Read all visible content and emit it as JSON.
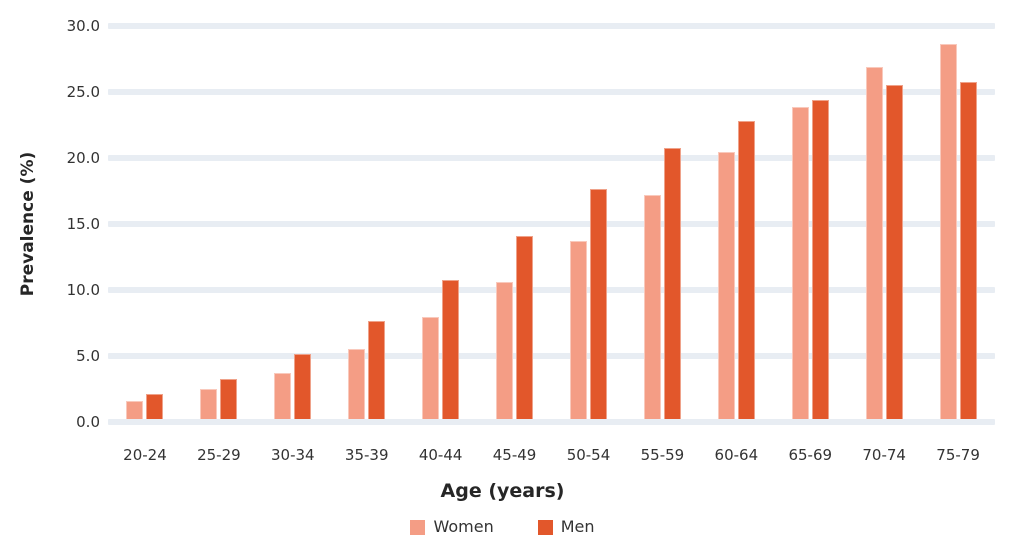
{
  "chart_data": {
    "type": "bar",
    "title": "",
    "xlabel": "Age (years)",
    "ylabel": "Prevalence (%)",
    "categories": [
      "20-24",
      "25-29",
      "30-34",
      "35-39",
      "40-44",
      "45-49",
      "50-54",
      "55-59",
      "60-64",
      "65-69",
      "70-74",
      "75-79"
    ],
    "series": [
      {
        "name": "Women",
        "color": "#F49D85",
        "values": [
          1.4,
          2.3,
          3.5,
          5.3,
          7.7,
          10.4,
          13.5,
          17.0,
          20.2,
          23.6,
          26.7,
          28.4
        ]
      },
      {
        "name": "Men",
        "color": "#E2572B",
        "values": [
          1.9,
          3.0,
          4.9,
          7.4,
          10.5,
          13.9,
          17.4,
          20.5,
          22.6,
          24.2,
          25.3,
          25.5
        ]
      }
    ],
    "ylim": [
      0,
      30
    ],
    "yticks": [
      "0.0",
      "5.0",
      "10.0",
      "15.0",
      "20.0",
      "25.0",
      "30.0"
    ],
    "grid": "horizontal",
    "gridline_color": "#E8EDF3",
    "background_color": "#FFFFFF",
    "legend_position": "bottom"
  }
}
